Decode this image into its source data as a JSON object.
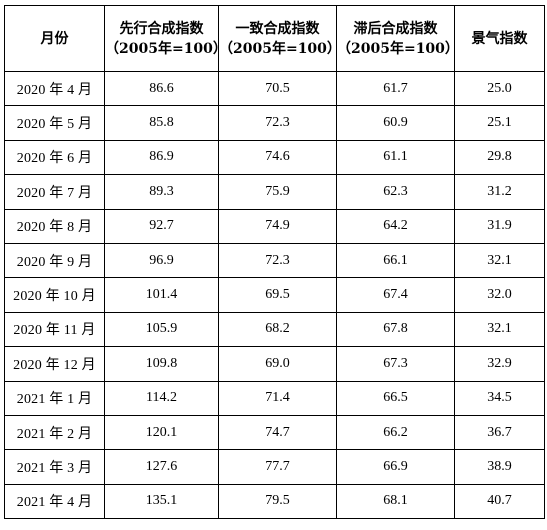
{
  "table": {
    "headers": [
      {
        "line1": "月份",
        "line2": ""
      },
      {
        "line1": "先行合成指数",
        "line2": "（2005年=100）"
      },
      {
        "line1": "一致合成指数",
        "line2": "（2005年=100）"
      },
      {
        "line1": "滞后合成指数",
        "line2": "（2005年=100）"
      },
      {
        "line1": "景气指数",
        "line2": ""
      }
    ],
    "rows": [
      {
        "month": "2020 年 4 月",
        "leading": "86.6",
        "coincident": "70.5",
        "lagging": "61.7",
        "climate": "25.0"
      },
      {
        "month": "2020 年 5 月",
        "leading": "85.8",
        "coincident": "72.3",
        "lagging": "60.9",
        "climate": "25.1"
      },
      {
        "month": "2020 年 6 月",
        "leading": "86.9",
        "coincident": "74.6",
        "lagging": "61.1",
        "climate": "29.8"
      },
      {
        "month": "2020 年 7 月",
        "leading": "89.3",
        "coincident": "75.9",
        "lagging": "62.3",
        "climate": "31.2"
      },
      {
        "month": "2020 年 8 月",
        "leading": "92.7",
        "coincident": "74.9",
        "lagging": "64.2",
        "climate": "31.9"
      },
      {
        "month": "2020 年 9 月",
        "leading": "96.9",
        "coincident": "72.3",
        "lagging": "66.1",
        "climate": "32.1"
      },
      {
        "month": "2020 年 10 月",
        "leading": "101.4",
        "coincident": "69.5",
        "lagging": "67.4",
        "climate": "32.0"
      },
      {
        "month": "2020 年 11 月",
        "leading": "105.9",
        "coincident": "68.2",
        "lagging": "67.8",
        "climate": "32.1"
      },
      {
        "month": "2020 年 12 月",
        "leading": "109.8",
        "coincident": "69.0",
        "lagging": "67.3",
        "climate": "32.9"
      },
      {
        "month": "2021 年 1 月",
        "leading": "114.2",
        "coincident": "71.4",
        "lagging": "66.5",
        "climate": "34.5"
      },
      {
        "month": "2021 年 2 月",
        "leading": "120.1",
        "coincident": "74.7",
        "lagging": "66.2",
        "climate": "36.7"
      },
      {
        "month": "2021 年 3 月",
        "leading": "127.6",
        "coincident": "77.7",
        "lagging": "66.9",
        "climate": "38.9"
      },
      {
        "month": "2021 年 4 月",
        "leading": "135.1",
        "coincident": "79.5",
        "lagging": "68.1",
        "climate": "40.7"
      }
    ]
  }
}
